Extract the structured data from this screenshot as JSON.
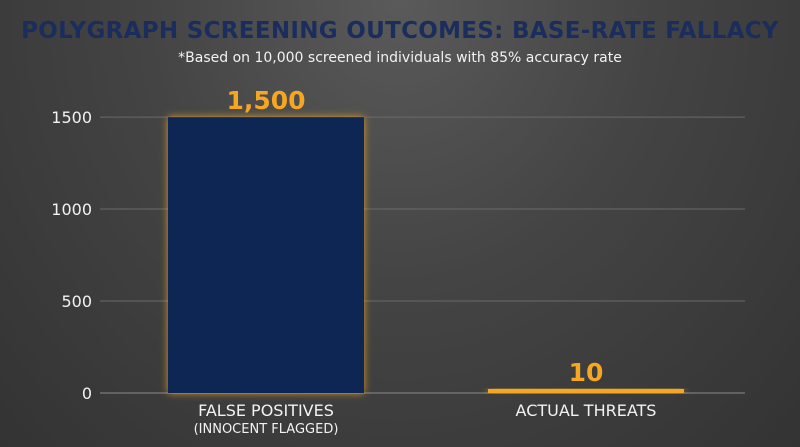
{
  "colors": {
    "bar_fill": "#0f2552",
    "bar_glow": "#f5a623",
    "data_label": "#f5a623",
    "title": "#1b2d5c"
  },
  "chart_data": {
    "type": "bar",
    "title": "POLYGRAPH SCREENING OUTCOMES: BASE-RATE FALLACY",
    "subtitle": "*Based on 10,000 screened individuals with 85% accuracy rate",
    "categories": [
      "FALSE POSITIVES",
      "ACTUAL THREATS"
    ],
    "category_sublabels": [
      "(INNOCENT FLAGGED)",
      ""
    ],
    "values": [
      1500,
      10
    ],
    "data_labels": [
      "1,500",
      "10"
    ],
    "yticks": [
      0,
      500,
      1000,
      1500
    ],
    "ylim": [
      0,
      1620
    ],
    "grid": true,
    "xlabel": "",
    "ylabel": ""
  }
}
